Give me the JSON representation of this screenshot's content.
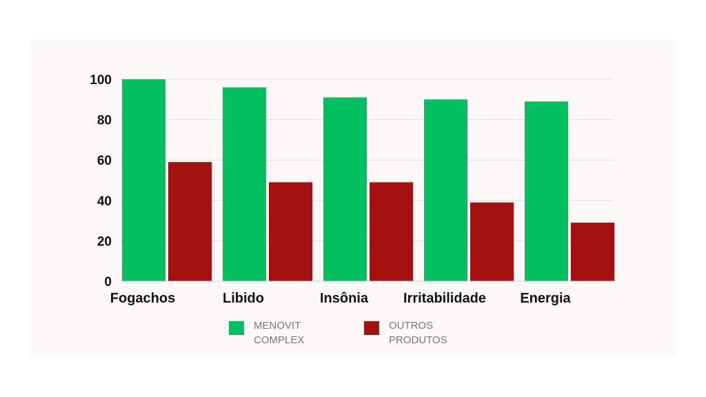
{
  "chart_data": {
    "type": "bar",
    "categories": [
      "Fogachos",
      "Libido",
      "Insônia",
      "Irritabilidade",
      "Energia"
    ],
    "series": [
      {
        "name": "MENOVIT COMPLEX",
        "color": "#00c060",
        "values": [
          100,
          96,
          91,
          90,
          89
        ]
      },
      {
        "name": "OUTROS PRODUTOS",
        "color": "#a31111",
        "values": [
          59,
          49,
          49,
          39,
          29
        ]
      }
    ],
    "yticks": [
      "0",
      "20",
      "40",
      "60",
      "80",
      "100"
    ],
    "ylim": [
      0,
      100
    ],
    "grid": true,
    "legend_position": "bottom",
    "legend": [
      {
        "label": "MENOVIT\nCOMPLEX",
        "color": "#00c060"
      },
      {
        "label": "OUTROS\nPRODUTOS",
        "color": "#a31111"
      }
    ]
  }
}
